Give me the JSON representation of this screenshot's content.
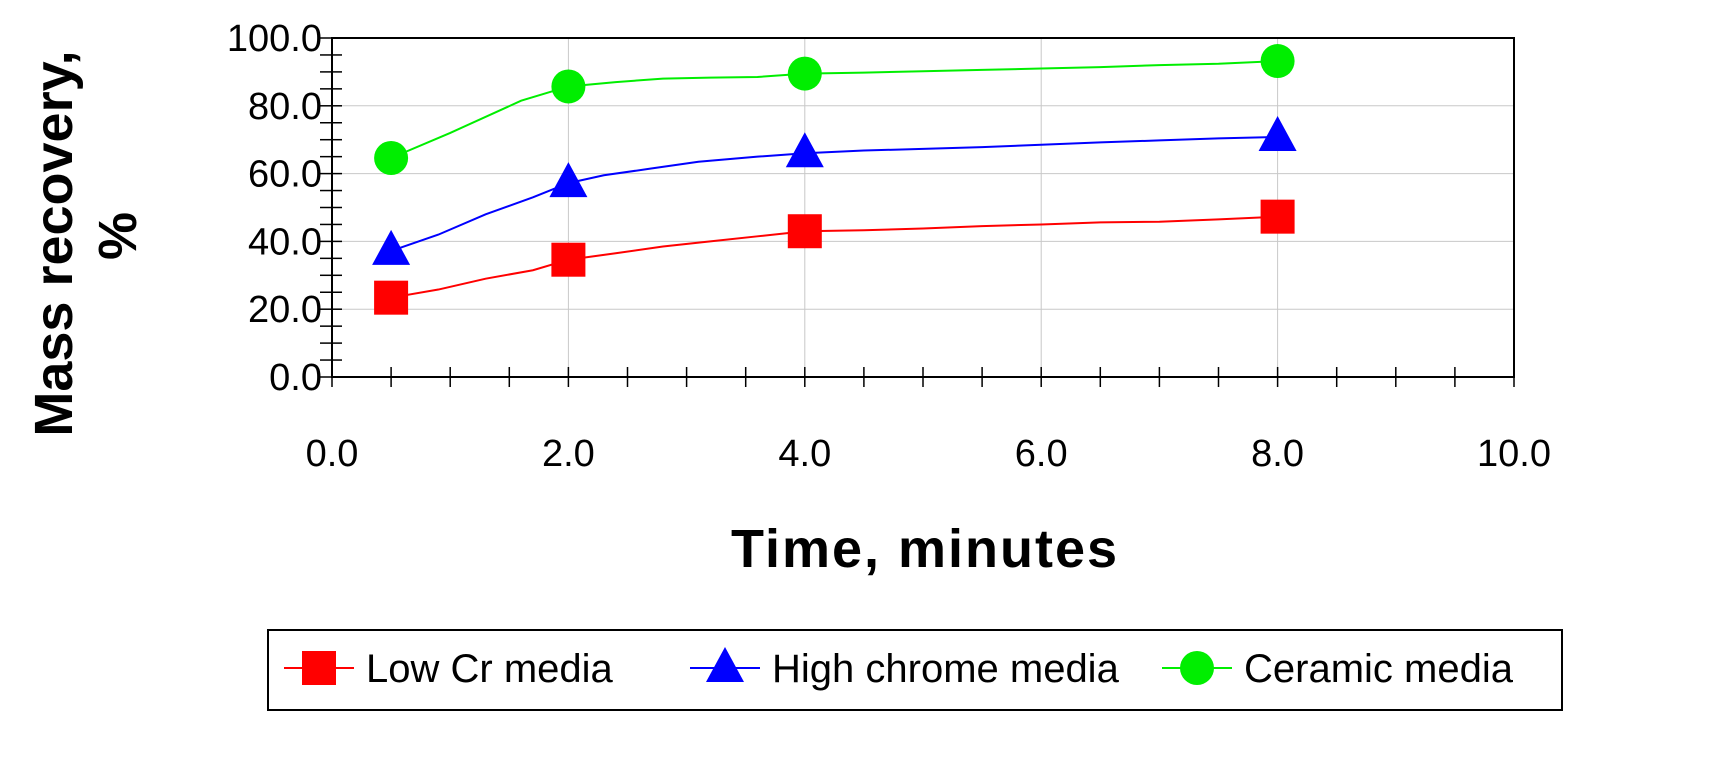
{
  "chart_data": {
    "type": "line",
    "title": "",
    "xlabel": "Time, minutes",
    "ylabel_lines": [
      "Mass recovery,",
      "%"
    ],
    "xlim": [
      0,
      10
    ],
    "ylim": [
      0,
      100
    ],
    "xticks": [
      "0.0",
      "2.0",
      "4.0",
      "6.0",
      "8.0",
      "10.0"
    ],
    "yticks": [
      "0.0",
      "20.0",
      "40.0",
      "60.0",
      "80.0",
      "100.0"
    ],
    "grid": true,
    "legend_position": "bottom",
    "series": [
      {
        "name": "Low Cr media",
        "color": "#ff0000",
        "marker": "square",
        "x": [
          0.5,
          2.0,
          4.0,
          8.0
        ],
        "y": [
          23.4,
          34.6,
          43.0,
          47.3
        ],
        "curve_x": [
          0.5,
          0.9,
          1.3,
          1.7,
          2.0,
          2.4,
          2.8,
          3.2,
          3.6,
          4.0,
          4.5,
          5.0,
          5.5,
          6.0,
          6.5,
          7.0,
          7.5,
          8.0
        ],
        "curve_y": [
          23.4,
          25.8,
          29.0,
          31.5,
          34.6,
          36.5,
          38.5,
          40.0,
          41.5,
          43.0,
          43.3,
          43.8,
          44.5,
          45.0,
          45.6,
          45.8,
          46.5,
          47.3
        ]
      },
      {
        "name": "High chrome media",
        "color": "#0000ff",
        "marker": "triangle",
        "x": [
          0.5,
          2.0,
          4.0,
          8.0
        ],
        "y": [
          37.2,
          57.2,
          66.0,
          70.8
        ],
        "curve_x": [
          0.5,
          0.9,
          1.3,
          1.7,
          2.0,
          2.3,
          2.7,
          3.1,
          3.6,
          4.0,
          4.5,
          5.0,
          5.5,
          6.0,
          6.5,
          7.0,
          7.5,
          8.0
        ],
        "curve_y": [
          37.2,
          42.0,
          48.0,
          53.0,
          57.2,
          59.5,
          61.5,
          63.5,
          65.0,
          66.0,
          66.8,
          67.3,
          67.8,
          68.5,
          69.2,
          69.8,
          70.4,
          70.8
        ]
      },
      {
        "name": "Ceramic media",
        "color": "#00ee00",
        "marker": "circle",
        "x": [
          0.5,
          2.0,
          4.0,
          8.0
        ],
        "y": [
          64.6,
          85.7,
          89.5,
          93.2
        ],
        "curve_x": [
          0.5,
          1.0,
          1.6,
          2.0,
          2.4,
          2.8,
          3.2,
          3.6,
          4.0,
          4.5,
          5.0,
          5.5,
          6.0,
          6.5,
          7.0,
          7.5,
          8.0
        ],
        "curve_y": [
          64.6,
          72.0,
          81.5,
          85.7,
          87.0,
          88.0,
          88.3,
          88.5,
          89.5,
          89.8,
          90.2,
          90.6,
          91.0,
          91.4,
          92.0,
          92.4,
          93.2
        ]
      }
    ]
  }
}
